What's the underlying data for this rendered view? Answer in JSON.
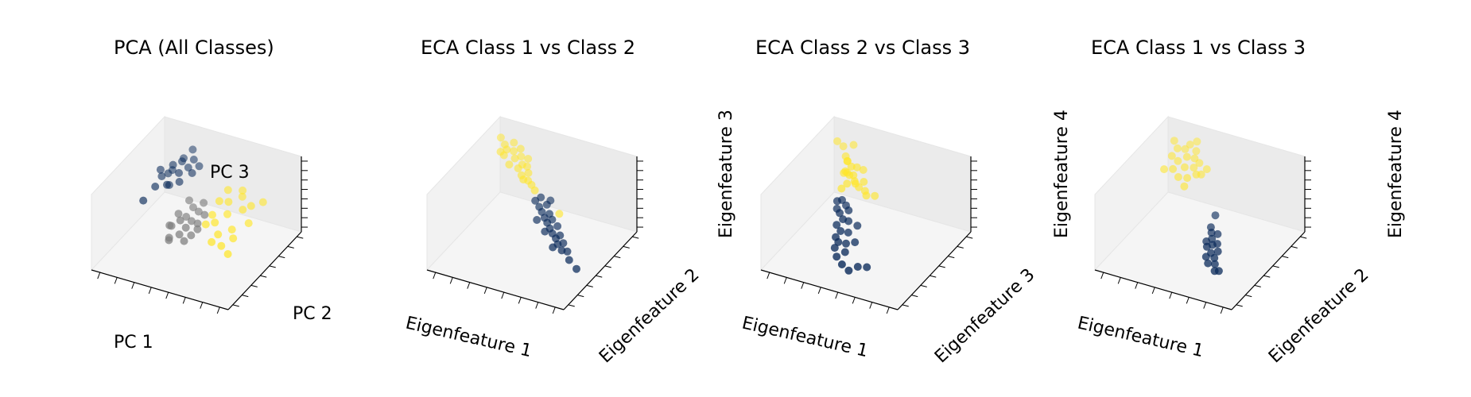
{
  "colors": {
    "class_dark": "#0a2a5a",
    "class_mid": "#7f7f7f",
    "class_yellow": "#ffe629"
  },
  "chart_data": [
    {
      "type": "scatter3d",
      "title": "PCA (All Classes)",
      "xlabel": "PC 1",
      "ylabel": "PC 2",
      "zlabel": "PC 3",
      "xlim": [
        0,
        10
      ],
      "ylim": [
        0,
        10
      ],
      "zlim": [
        0,
        10
      ],
      "series": [
        {
          "color": "#0a2a5a",
          "points": [
            [
              1.2,
              7.2,
              6.5
            ],
            [
              1.5,
              6.8,
              6.2
            ],
            [
              1.9,
              7.6,
              7.1
            ],
            [
              2.1,
              6.4,
              5.8
            ],
            [
              2.4,
              7.9,
              7.5
            ],
            [
              2.6,
              7.1,
              6.9
            ],
            [
              2.9,
              6.6,
              6.4
            ],
            [
              3.1,
              8.2,
              7.8
            ],
            [
              1.7,
              7.9,
              6.0
            ],
            [
              2.2,
              8.5,
              7.2
            ],
            [
              3.4,
              7.4,
              7.0
            ],
            [
              1.4,
              6.1,
              5.5
            ],
            [
              2.7,
              8.8,
              8.3
            ],
            [
              0.9,
              5.4,
              4.1
            ],
            [
              3.6,
              8.0,
              7.4
            ],
            [
              2.0,
              6.9,
              5.2
            ],
            [
              1.6,
              7.5,
              5.9
            ],
            [
              2.8,
              8.0,
              6.8
            ]
          ]
        },
        {
          "color": "#7f7f7f",
          "points": [
            [
              3.8,
              4.8,
              4.5
            ],
            [
              4.2,
              5.1,
              4.0
            ],
            [
              4.6,
              4.3,
              3.6
            ],
            [
              5.0,
              5.3,
              4.9
            ],
            [
              4.4,
              3.8,
              3.1
            ],
            [
              3.6,
              4.2,
              3.4
            ],
            [
              5.3,
              4.6,
              4.2
            ],
            [
              4.9,
              3.5,
              2.8
            ],
            [
              3.9,
              3.3,
              2.6
            ],
            [
              5.6,
              5.0,
              5.1
            ],
            [
              4.1,
              5.7,
              5.5
            ],
            [
              4.7,
              4.9,
              3.9
            ],
            [
              5.2,
              3.9,
              3.3
            ],
            [
              3.3,
              4.5,
              3.0
            ],
            [
              4.5,
              5.5,
              5.0
            ],
            [
              5.4,
              4.4,
              3.7
            ],
            [
              3.7,
              3.7,
              2.4
            ],
            [
              4.3,
              4.1,
              4.6
            ],
            [
              5.1,
              5.8,
              5.6
            ]
          ]
        },
        {
          "color": "#ffe629",
          "points": [
            [
              6.2,
              5.9,
              6.3
            ],
            [
              6.6,
              6.4,
              5.9
            ],
            [
              7.0,
              5.5,
              5.4
            ],
            [
              7.4,
              6.8,
              6.6
            ],
            [
              6.4,
              4.9,
              4.6
            ],
            [
              7.8,
              6.1,
              5.8
            ],
            [
              6.9,
              4.4,
              3.8
            ],
            [
              7.6,
              5.0,
              4.2
            ],
            [
              8.2,
              6.5,
              6.1
            ],
            [
              6.0,
              5.3,
              5.0
            ],
            [
              7.2,
              7.2,
              6.9
            ],
            [
              8.5,
              5.6,
              4.9
            ],
            [
              6.7,
              3.9,
              3.2
            ],
            [
              7.9,
              4.6,
              3.6
            ],
            [
              8.8,
              7.0,
              6.4
            ],
            [
              6.3,
              6.9,
              6.8
            ],
            [
              7.3,
              4.1,
              2.8
            ],
            [
              8.0,
              3.7,
              2.5
            ],
            [
              5.9,
              4.6,
              4.4
            ]
          ]
        }
      ]
    },
    {
      "type": "scatter3d",
      "title": "ECA Class 1 vs Class 2",
      "xlabel": "Eigenfeature 1",
      "ylabel": "Eigenfeature 2",
      "zlabel": "Eigenfeature 3",
      "xlim": [
        0,
        10
      ],
      "ylim": [
        0,
        10
      ],
      "zlim": [
        0,
        10
      ],
      "series": [
        {
          "color": "#ffe629",
          "points": [
            [
              0.8,
              8.6,
              9.1
            ],
            [
              1.2,
              8.4,
              8.6
            ],
            [
              1.5,
              8.1,
              8.4
            ],
            [
              1.9,
              8.3,
              8.2
            ],
            [
              2.2,
              7.9,
              7.8
            ],
            [
              2.5,
              8.2,
              7.9
            ],
            [
              2.8,
              7.8,
              7.4
            ],
            [
              3.1,
              7.9,
              7.2
            ],
            [
              3.4,
              7.5,
              6.9
            ],
            [
              1.4,
              7.9,
              7.8
            ],
            [
              2.0,
              7.5,
              7.3
            ],
            [
              2.6,
              7.6,
              7.0
            ],
            [
              3.0,
              7.3,
              6.6
            ],
            [
              3.6,
              7.1,
              6.4
            ],
            [
              1.1,
              8.0,
              8.0
            ],
            [
              2.3,
              8.5,
              8.5
            ],
            [
              3.9,
              7.0,
              6.1
            ],
            [
              1.7,
              8.7,
              8.8
            ],
            [
              2.9,
              8.4,
              7.6
            ],
            [
              3.3,
              7.0,
              6.5
            ],
            [
              4.3,
              6.7,
              5.9
            ],
            [
              6.2,
              6.5,
              4.0
            ]
          ]
        },
        {
          "color": "#0a2a5a",
          "points": [
            [
              4.6,
              6.2,
              5.2
            ],
            [
              5.0,
              6.0,
              4.8
            ],
            [
              5.3,
              5.8,
              4.5
            ],
            [
              5.6,
              5.6,
              4.1
            ],
            [
              5.9,
              5.4,
              3.8
            ],
            [
              6.2,
              5.2,
              3.4
            ],
            [
              6.5,
              5.0,
              3.1
            ],
            [
              6.8,
              4.9,
              2.7
            ],
            [
              7.1,
              4.6,
              2.4
            ],
            [
              7.5,
              4.4,
              2.0
            ],
            [
              4.9,
              6.4,
              5.6
            ],
            [
              5.4,
              6.3,
              5.0
            ],
            [
              5.8,
              5.9,
              4.4
            ],
            [
              6.1,
              5.7,
              4.0
            ],
            [
              6.6,
              5.5,
              3.6
            ],
            [
              7.0,
              5.1,
              3.0
            ],
            [
              7.4,
              4.8,
              2.5
            ],
            [
              8.2,
              4.1,
              1.4
            ],
            [
              8.9,
              3.8,
              0.9
            ],
            [
              5.2,
              5.3,
              3.9
            ],
            [
              6.0,
              4.9,
              3.2
            ],
            [
              6.9,
              4.3,
              2.2
            ],
            [
              5.5,
              6.6,
              5.3
            ],
            [
              7.8,
              4.6,
              1.8
            ]
          ]
        }
      ]
    },
    {
      "type": "scatter3d",
      "title": "ECA Class 2 vs Class 3",
      "xlabel": "Eigenfeature 1",
      "ylabel": "Eigenfeature 3",
      "zlabel": "Eigenfeature 4",
      "xlim": [
        0,
        10
      ],
      "ylim": [
        0,
        10
      ],
      "zlim": [
        0,
        10
      ],
      "series": [
        {
          "color": "#ffe629",
          "points": [
            [
              3.0,
              6.2,
              9.6
            ],
            [
              3.4,
              6.0,
              9.3
            ],
            [
              2.8,
              6.6,
              9.1
            ],
            [
              3.6,
              6.4,
              8.9
            ],
            [
              3.2,
              5.8,
              8.6
            ],
            [
              2.9,
              5.9,
              8.3
            ],
            [
              3.5,
              6.1,
              8.1
            ],
            [
              3.8,
              5.7,
              7.9
            ],
            [
              3.1,
              6.3,
              7.7
            ],
            [
              3.3,
              5.6,
              7.4
            ],
            [
              3.7,
              6.0,
              7.2
            ],
            [
              4.0,
              5.9,
              7.0
            ],
            [
              2.7,
              6.5,
              7.8
            ],
            [
              3.9,
              6.7,
              8.4
            ],
            [
              4.2,
              6.2,
              7.5
            ],
            [
              1.3,
              8.0,
              9.5
            ],
            [
              1.8,
              7.9,
              9.2
            ],
            [
              2.4,
              7.1,
              9.0
            ],
            [
              3.0,
              5.4,
              6.8
            ],
            [
              4.4,
              6.0,
              6.6
            ],
            [
              4.6,
              5.8,
              6.3
            ],
            [
              2.6,
              7.8,
              9.9
            ],
            [
              4.9,
              6.4,
              5.8
            ]
          ]
        },
        {
          "color": "#0a2a5a",
          "points": [
            [
              3.2,
              5.1,
              5.7
            ],
            [
              3.6,
              4.9,
              5.4
            ],
            [
              3.9,
              4.7,
              5.1
            ],
            [
              3.4,
              4.4,
              4.8
            ],
            [
              3.8,
              4.1,
              4.5
            ],
            [
              4.1,
              4.3,
              4.2
            ],
            [
              3.5,
              3.8,
              3.9
            ],
            [
              3.9,
              3.6,
              3.5
            ],
            [
              4.3,
              3.9,
              3.2
            ],
            [
              3.7,
              3.3,
              2.9
            ],
            [
              4.0,
              3.1,
              2.6
            ],
            [
              4.4,
              3.4,
              2.3
            ],
            [
              3.9,
              2.8,
              2.1
            ],
            [
              4.6,
              2.9,
              1.8
            ],
            [
              4.2,
              2.5,
              1.4
            ],
            [
              2.9,
              5.0,
              5.5
            ],
            [
              3.1,
              4.6,
              5.0
            ],
            [
              4.7,
              4.4,
              3.8
            ],
            [
              5.0,
              3.5,
              2.7
            ],
            [
              5.8,
              2.4,
              1.0
            ],
            [
              6.3,
              2.7,
              0.9
            ],
            [
              5.4,
              1.9,
              0.8
            ],
            [
              4.8,
              2.1,
              1.1
            ]
          ]
        }
      ]
    },
    {
      "type": "scatter3d",
      "title": "ECA Class 1 vs Class 3",
      "xlabel": "Eigenfeature 1",
      "ylabel": "Eigenfeature 2",
      "zlabel": "Eigenfeature 4",
      "xlim": [
        0,
        10
      ],
      "ylim": [
        0,
        10
      ],
      "zlim": [
        0,
        10
      ],
      "series": [
        {
          "color": "#ffe629",
          "points": [
            [
              1.2,
              8.6,
              8.9
            ],
            [
              1.6,
              8.3,
              8.4
            ],
            [
              2.0,
              8.6,
              8.2
            ],
            [
              2.4,
              8.1,
              7.9
            ],
            [
              2.8,
              8.4,
              7.6
            ],
            [
              1.9,
              7.8,
              7.4
            ],
            [
              2.5,
              7.6,
              7.1
            ],
            [
              3.0,
              7.9,
              7.0
            ],
            [
              3.4,
              7.5,
              6.7
            ],
            [
              1.4,
              7.9,
              7.7
            ],
            [
              2.2,
              8.9,
              8.6
            ],
            [
              2.7,
              8.8,
              8.1
            ],
            [
              3.2,
              8.3,
              7.3
            ],
            [
              3.6,
              7.8,
              6.5
            ],
            [
              1.8,
              7.3,
              6.8
            ],
            [
              2.9,
              7.2,
              6.3
            ],
            [
              2.3,
              7.1,
              6.2
            ],
            [
              3.8,
              8.2,
              6.9
            ],
            [
              2.6,
              9.1,
              9.0
            ],
            [
              1.1,
              7.4,
              6.3
            ],
            [
              2.9,
              6.8,
              5.6
            ]
          ]
        },
        {
          "color": "#0a2a5a",
          "points": [
            [
              5.9,
              4.9,
              3.0
            ],
            [
              6.1,
              4.6,
              2.6
            ],
            [
              6.3,
              4.3,
              2.2
            ],
            [
              6.0,
              4.1,
              2.0
            ],
            [
              6.4,
              3.9,
              1.6
            ],
            [
              6.6,
              4.4,
              2.4
            ],
            [
              6.2,
              3.6,
              1.3
            ],
            [
              6.7,
              3.8,
              1.2
            ],
            [
              6.5,
              3.3,
              0.9
            ],
            [
              6.9,
              3.5,
              0.8
            ],
            [
              5.8,
              4.4,
              2.3
            ],
            [
              6.8,
              4.1,
              1.8
            ],
            [
              7.1,
              3.1,
              0.4
            ],
            [
              5.7,
              5.2,
              3.3
            ],
            [
              6.3,
              5.0,
              2.9
            ],
            [
              7.3,
              3.3,
              0.3
            ],
            [
              5.6,
              6.0,
              4.0
            ]
          ]
        }
      ]
    }
  ]
}
